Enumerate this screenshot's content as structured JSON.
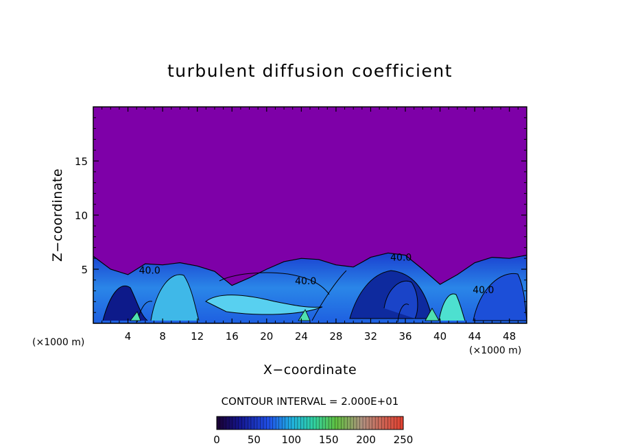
{
  "chart_data": {
    "type": "heatmap",
    "title": "turbulent diffusion coefficient",
    "xlabel": "X−coordinate",
    "ylabel": "Z−coordinate",
    "x_unit_left": "(×1000 m)",
    "x_unit_right": "(×1000 m)",
    "xlim": [
      0,
      50
    ],
    "ylim": [
      0,
      20
    ],
    "x_ticks": [
      4,
      8,
      12,
      16,
      20,
      24,
      28,
      32,
      36,
      40,
      44,
      48
    ],
    "y_ticks": [
      5,
      10,
      15
    ],
    "contour_interval_text": "CONTOUR INTERVAL = 2.000E+01",
    "contour_labels": [
      {
        "text": "40.0",
        "x": 6.5,
        "z": 4.6
      },
      {
        "text": "40.0",
        "x": 24.5,
        "z": 3.6
      },
      {
        "text": "40.0",
        "x": 35.5,
        "z": 5.8
      },
      {
        "text": "40.0",
        "x": 45.0,
        "z": 2.8
      }
    ],
    "boundary_layer_top": {
      "x": [
        0,
        2,
        4,
        6,
        8,
        10,
        12,
        14,
        16,
        18,
        20,
        22,
        24,
        26,
        28,
        30,
        32,
        34,
        36,
        38,
        40,
        42,
        44,
        46,
        48,
        50
      ],
      "z": [
        6.2,
        5.0,
        4.5,
        5.5,
        5.4,
        5.6,
        5.3,
        4.8,
        3.5,
        4.2,
        5.0,
        5.7,
        6.0,
        5.9,
        5.4,
        5.2,
        6.1,
        6.5,
        6.3,
        5.0,
        3.6,
        4.5,
        5.6,
        6.1,
        6.0,
        6.3
      ]
    },
    "colorbar": {
      "min": 0,
      "max": 250,
      "ticks": [
        "0",
        "50",
        "100",
        "150",
        "200",
        "250"
      ]
    },
    "colors": {
      "background_field": "#7e00a8",
      "low": "#0b0b6e",
      "mid": "#1f6ee8",
      "high": "#4fd9d0"
    }
  }
}
